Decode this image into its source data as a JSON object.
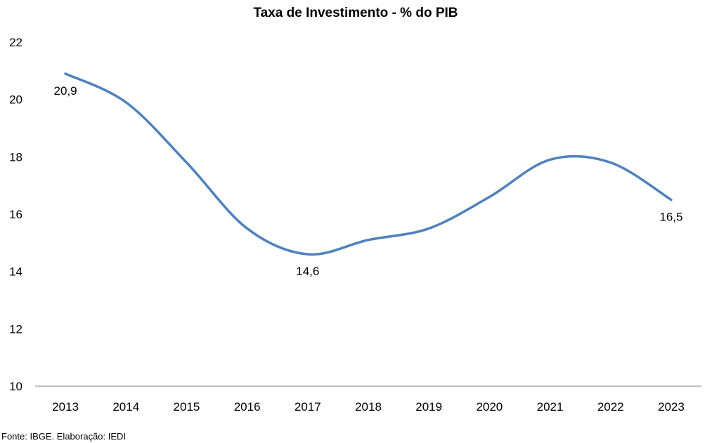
{
  "chart_data": {
    "type": "line",
    "title": "Taxa de Investimento - % do PIB",
    "xlabel": "",
    "ylabel": "",
    "categories": [
      "2013",
      "2014",
      "2015",
      "2016",
      "2017",
      "2018",
      "2019",
      "2020",
      "2021",
      "2022",
      "2023"
    ],
    "series": [
      {
        "values": [
          20.9,
          19.9,
          17.8,
          15.5,
          14.6,
          15.1,
          15.5,
          16.6,
          17.9,
          17.8,
          16.5
        ],
        "color": "#4f81bd",
        "smooth": true
      }
    ],
    "data_labels": [
      {
        "index": 0,
        "text": "20,9",
        "position": "below"
      },
      {
        "index": 4,
        "text": "14,6",
        "position": "below"
      },
      {
        "index": 10,
        "text": "16,5",
        "position": "below"
      }
    ],
    "ylim": [
      10,
      22
    ],
    "yticks": [
      "10",
      "12",
      "14",
      "16",
      "18",
      "20",
      "22"
    ],
    "grid": false,
    "legend": false
  },
  "footer": {
    "source": "Fonte: IBGE. Elaboração: IEDI"
  }
}
